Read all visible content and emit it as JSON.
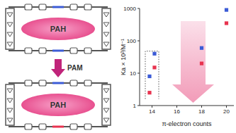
{
  "chart_data": {
    "type": "scatter",
    "x_label": "π-electron counts",
    "y_label": "Ka × 10³/M⁻¹",
    "x": [
      13.8,
      14.2,
      18,
      20
    ],
    "series": [
      {
        "color": "#3b5bd6",
        "marker": "square",
        "values": [
          8,
          40,
          60,
          900
        ]
      },
      {
        "color": "#e8334f",
        "marker": "square",
        "values": [
          2.5,
          15,
          20,
          350
        ]
      }
    ],
    "log": "y",
    "xlim": [
      13,
      20.6
    ],
    "xticks": [
      14,
      16,
      18,
      20
    ],
    "ylim": [
      1,
      1000
    ],
    "yticks": [
      1,
      10,
      100,
      1000
    ]
  },
  "diagram": {
    "top_guest": "PAH",
    "arrow_label": "PAM",
    "bottom_guest": "PAH"
  }
}
